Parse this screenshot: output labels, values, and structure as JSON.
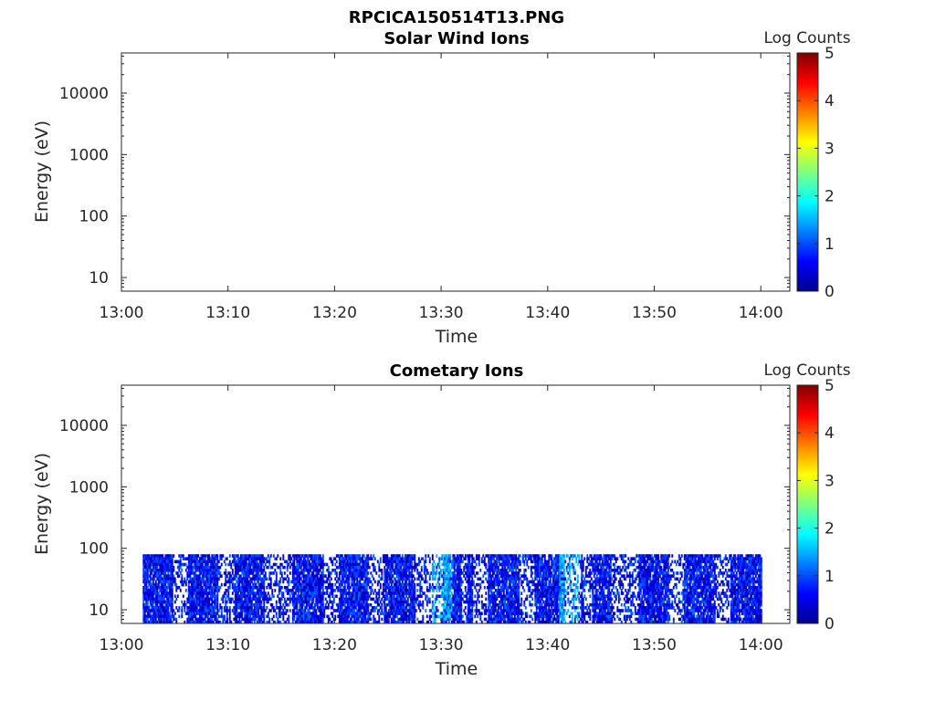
{
  "figure_title": "RPCICA150514T13.PNG",
  "chart_data": [
    {
      "type": "heatmap",
      "title": "Solar Wind Ions",
      "xlabel": "Time",
      "ylabel": "Energy (eV)",
      "x_tick_labels": [
        "13:00",
        "13:10",
        "13:20",
        "13:30",
        "13:40",
        "13:50",
        "14:00"
      ],
      "y_tick_labels": [
        "10",
        "100",
        "1000",
        "10000"
      ],
      "y_scale": "log",
      "ylim": [
        6,
        45000
      ],
      "colorbar": {
        "label": "Log Counts",
        "ticks": [
          "0",
          "1",
          "2",
          "3",
          "4",
          "5"
        ],
        "range": [
          0,
          5
        ],
        "colormap": "jet"
      },
      "data_present": false
    },
    {
      "type": "heatmap",
      "title": "Cometary Ions",
      "xlabel": "Time",
      "ylabel": "Energy (eV)",
      "x_tick_labels": [
        "13:00",
        "13:10",
        "13:20",
        "13:30",
        "13:40",
        "13:50",
        "14:00"
      ],
      "y_tick_labels": [
        "10",
        "100",
        "1000",
        "10000"
      ],
      "y_scale": "log",
      "ylim": [
        6,
        45000
      ],
      "colorbar": {
        "label": "Log Counts",
        "ticks": [
          "0",
          "1",
          "2",
          "3",
          "4",
          "5"
        ],
        "range": [
          0,
          5
        ],
        "colormap": "jet"
      },
      "data_present": true,
      "data_time_range": [
        "13:02",
        "14:00"
      ],
      "data_energy_range_eV": [
        6,
        80
      ],
      "typical_log_counts": [
        0.1,
        1.0
      ],
      "peak_log_counts": 1.5,
      "brighter_intervals": [
        "13:29-13:31",
        "13:41-13:43"
      ]
    }
  ]
}
